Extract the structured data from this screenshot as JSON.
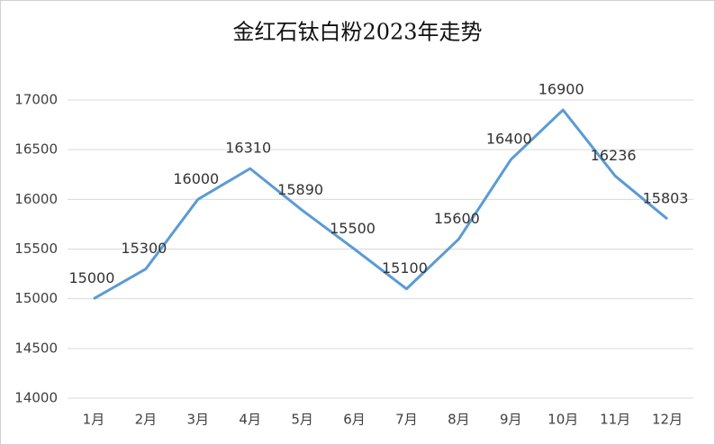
{
  "chart_data": {
    "type": "line",
    "title": "金红石钛白粉2023年走势",
    "categories": [
      "1月",
      "2月",
      "3月",
      "4月",
      "5月",
      "6月",
      "7月",
      "8月",
      "9月",
      "10月",
      "11月",
      "12月"
    ],
    "series": [
      {
        "name": "金红石钛白粉",
        "color": "#5b9bd5",
        "values": [
          15000,
          15300,
          16000,
          16310,
          15890,
          15500,
          15100,
          15600,
          16400,
          16900,
          16236,
          15803
        ]
      }
    ],
    "ylim": [
      14000,
      17000
    ],
    "yticks": [
      14000,
      14500,
      15000,
      15500,
      16000,
      16500,
      17000
    ],
    "grid": true
  }
}
